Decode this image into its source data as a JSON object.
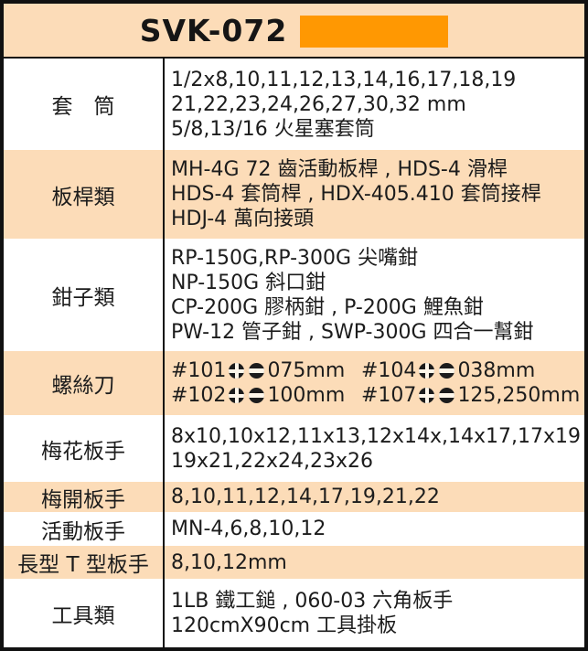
{
  "header": {
    "title": "SVK-072",
    "swatch_color": "#ff9802"
  },
  "colors": {
    "header_bg": "#fcdcb8",
    "row_alt_bg": "#fcdcb8",
    "row_bg": "#ffffff",
    "border": "#111111",
    "text": "#1c1c1c",
    "swatch": "#ff9802"
  },
  "table": {
    "rows": [
      {
        "label": "套　筒",
        "lines": [
          "1/2x8,10,11,12,13,14,16,17,18,19",
          "21,22,23,24,26,27,30,32 mm",
          "5/8,13/16 火星塞套筒"
        ]
      },
      {
        "label": "板桿類",
        "lines": [
          "MH-4G 72 齒活動板桿 , HDS-4 滑桿",
          "HDS-4 套筒桿 , HDX-405.410 套筒接桿",
          "HDJ-4 萬向接頭"
        ]
      },
      {
        "label": "鉗子類",
        "lines": [
          "RP-150G,RP-300G 尖嘴鉗",
          "NP-150G 斜口鉗",
          "CP-200G 膠柄鉗 , P-200G 鯉魚鉗",
          "PW-12 管子鉗 , SWP-300G 四合一幫鉗"
        ]
      },
      {
        "label": "螺絲刀",
        "entries": [
          {
            "id": "#101",
            "size": "075mm"
          },
          {
            "id": "#104",
            "size": "038mm"
          },
          {
            "id": "#102",
            "size": "100mm"
          },
          {
            "id": "#107",
            "size": "125,250mm"
          }
        ]
      },
      {
        "label": "梅花板手",
        "lines": [
          "8x10,10x12,11x13,12x14x,14x17,17x19",
          "19x21,22x24,23x26"
        ]
      },
      {
        "label": "梅開板手",
        "lines": [
          "8,10,11,12,14,17,19,21,22"
        ]
      },
      {
        "label": "活動板手",
        "lines": [
          "MN-4,6,8,10,12"
        ]
      },
      {
        "label": "長型 T 型板手",
        "lines": [
          "8,10,12mm"
        ]
      },
      {
        "label": "工具類",
        "lines": [
          "1LB 鐵工鎚 , 060-03 六角板手",
          "120cmX90cm 工具掛板"
        ]
      }
    ]
  }
}
